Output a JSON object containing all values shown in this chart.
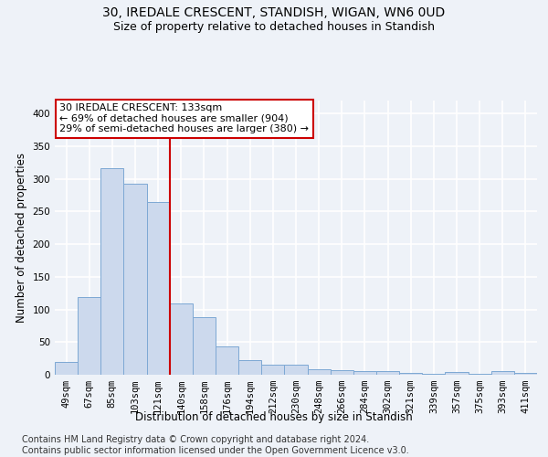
{
  "title_line1": "30, IREDALE CRESCENT, STANDISH, WIGAN, WN6 0UD",
  "title_line2": "Size of property relative to detached houses in Standish",
  "xlabel": "Distribution of detached houses by size in Standish",
  "ylabel": "Number of detached properties",
  "categories": [
    "49sqm",
    "67sqm",
    "85sqm",
    "103sqm",
    "121sqm",
    "140sqm",
    "158sqm",
    "176sqm",
    "194sqm",
    "212sqm",
    "230sqm",
    "248sqm",
    "266sqm",
    "284sqm",
    "302sqm",
    "321sqm",
    "339sqm",
    "357sqm",
    "375sqm",
    "393sqm",
    "411sqm"
  ],
  "values": [
    20,
    119,
    316,
    292,
    265,
    109,
    88,
    44,
    22,
    15,
    15,
    8,
    7,
    6,
    5,
    3,
    1,
    4,
    1,
    5,
    3
  ],
  "bar_color": "#ccd9ed",
  "bar_edge_color": "#7da8d4",
  "vline_x_index": 4.5,
  "vline_color": "#cc0000",
  "annotation_text": "30 IREDALE CRESCENT: 133sqm\n← 69% of detached houses are smaller (904)\n29% of semi-detached houses are larger (380) →",
  "annotation_box_color": "white",
  "annotation_box_edge_color": "#cc0000",
  "ylim": [
    0,
    420
  ],
  "yticks": [
    0,
    50,
    100,
    150,
    200,
    250,
    300,
    350,
    400
  ],
  "footer_text": "Contains HM Land Registry data © Crown copyright and database right 2024.\nContains public sector information licensed under the Open Government Licence v3.0.",
  "background_color": "#eef2f8",
  "grid_color": "#ffffff",
  "title_fontsize": 10,
  "subtitle_fontsize": 9,
  "axis_label_fontsize": 8.5,
  "tick_fontsize": 7.5,
  "footer_fontsize": 7,
  "annotation_fontsize": 8
}
